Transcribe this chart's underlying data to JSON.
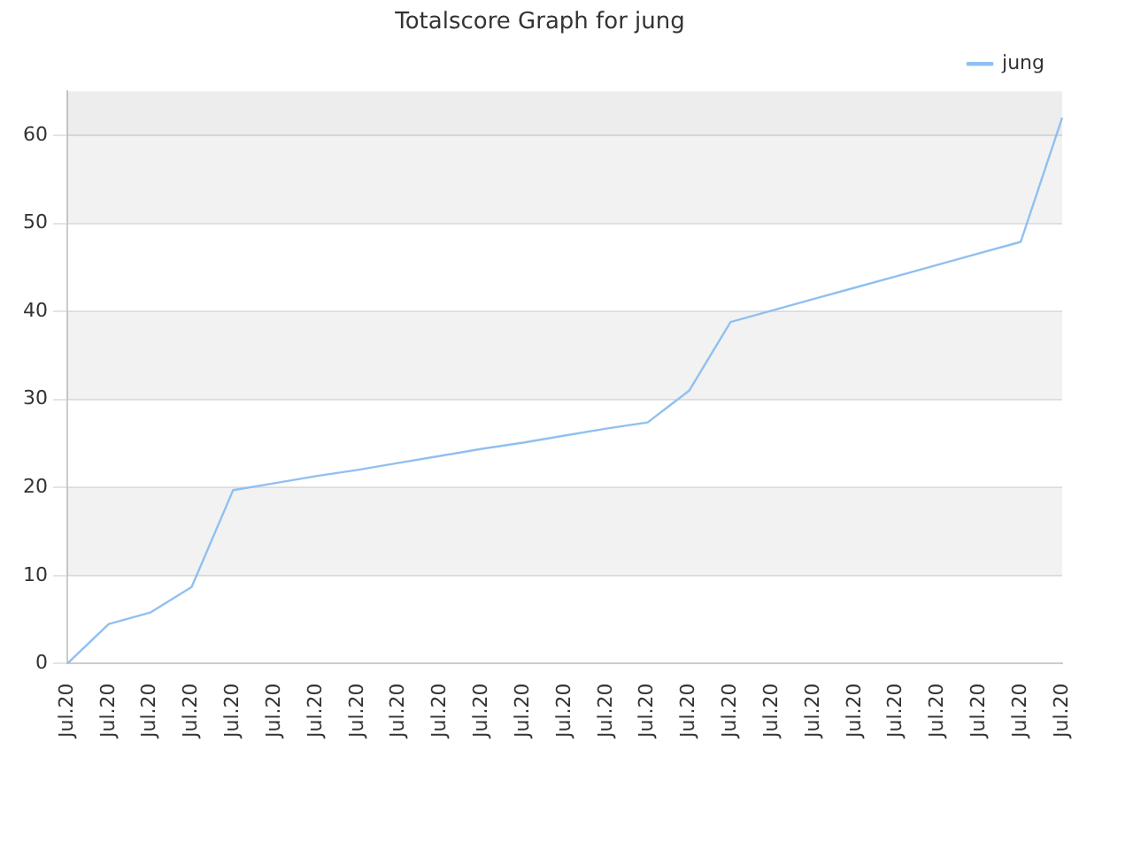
{
  "chart_data": {
    "type": "line",
    "title": "Totalscore Graph for jung",
    "categories": [
      "Jul.20",
      "Jul.20",
      "Jul.20",
      "Jul.20",
      "Jul.20",
      "Jul.20",
      "Jul.20",
      "Jul.20",
      "Jul.20",
      "Jul.20",
      "Jul.20",
      "Jul.20",
      "Jul.20",
      "Jul.20",
      "Jul.20",
      "Jul.20",
      "Jul.20",
      "Jul.20",
      "Jul.20",
      "Jul.20",
      "Jul.20",
      "Jul.20",
      "Jul.20",
      "Jul.20",
      "Jul.20"
    ],
    "series": [
      {
        "name": "jung",
        "color": "#90c0f0",
        "values": [
          0,
          4.5,
          5.8,
          8.7,
          19.7,
          20.5,
          21.3,
          22,
          22.8,
          23.6,
          24.4,
          25.1,
          25.9,
          26.7,
          27.4,
          31,
          38.8,
          40.1,
          41.4,
          42.7,
          44,
          45.3,
          46.6,
          47.9,
          62
        ]
      }
    ],
    "ylim": [
      0,
      65
    ],
    "yticks": [
      0,
      10,
      20,
      30,
      40,
      50,
      60
    ],
    "grid": "y",
    "legend": "top right",
    "marker": "none",
    "line_style": "solid"
  }
}
